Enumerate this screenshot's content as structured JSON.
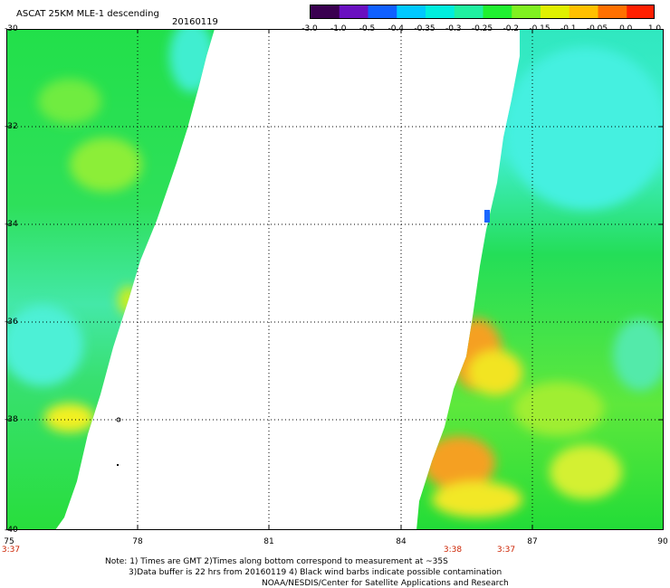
{
  "header": {
    "title": "ASCAT 25KM MLE-1 descending",
    "date": "20160119"
  },
  "colorbar": {
    "ticks": [
      "-3.0",
      "-1.0",
      "-0.5",
      "-0.4",
      "-0.35",
      "-0.3",
      "-0.25",
      "-0.2",
      "-0.15",
      "-0.1",
      "-0.05",
      "0.0",
      "1.0"
    ],
    "colors": [
      "#3a0050",
      "#6a10c0",
      "#1060ff",
      "#00c8ff",
      "#00eedd",
      "#20f0a0",
      "#20f030",
      "#80f020",
      "#e0f000",
      "#ffc000",
      "#ff7000",
      "#ff2000"
    ]
  },
  "map": {
    "lat_labels": [
      "-30",
      "-32",
      "-34",
      "-36",
      "-38",
      "-40"
    ],
    "lon_labels": [
      "75",
      "78",
      "81",
      "84",
      "87",
      "90"
    ],
    "times": [
      "3:37",
      "3:38",
      "3:37"
    ]
  },
  "notes": {
    "line1": "Note: 1) Times are GMT 2)Times along bottom correspond to measurement at ~35S",
    "line2": "3)Data buffer is 22 hrs from 20160119 4) Black wind barbs indicate possible contamination",
    "line3": "NOAA/NESDIS/Center for Satellite Applications and Research"
  }
}
